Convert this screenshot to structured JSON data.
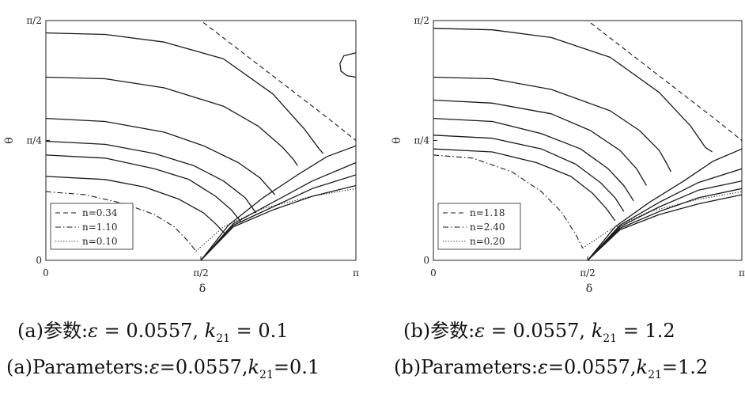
{
  "chart_data": [
    {
      "type": "line",
      "panel": "a",
      "title": "",
      "xlabel": "δ",
      "ylabel": "θ",
      "x_ticks": [
        "0",
        "π/2",
        "π"
      ],
      "y_ticks": [
        "0",
        "π/4",
        "π/2"
      ],
      "xlim": [
        0,
        3.1416
      ],
      "ylim": [
        0,
        1.5708
      ],
      "grid": false,
      "legend_position": "bottom-left",
      "series": [
        {
          "name": "n=0.34",
          "style": "dashed",
          "x": [
            0.0,
            1.571,
            2.88,
            3.1416
          ],
          "y": [
            1.5708,
            1.5708,
            0.92,
            0.785
          ]
        },
        {
          "name": "n=1.10",
          "style": "dashdot",
          "x": [
            0.0,
            0.4,
            0.8,
            1.1,
            1.3,
            1.45,
            1.52
          ],
          "y": [
            0.45,
            0.43,
            0.37,
            0.3,
            0.22,
            0.12,
            0.06
          ]
        },
        {
          "name": "n=0.10",
          "style": "dotted",
          "x": [
            1.52,
            1.8,
            2.2,
            2.7,
            3.1416
          ],
          "y": [
            0.06,
            0.22,
            0.34,
            0.42,
            0.47
          ]
        },
        {
          "name": "",
          "style": "solid",
          "x": [
            0.0,
            0.6,
            1.2,
            1.8,
            2.3,
            2.62,
            2.77,
            2.81
          ],
          "y": [
            1.49,
            1.48,
            1.43,
            1.32,
            1.09,
            0.86,
            0.73,
            0.7
          ]
        },
        {
          "name": "",
          "style": "solid",
          "x": [
            0.0,
            0.6,
            1.2,
            1.8,
            2.15,
            2.4,
            2.51,
            2.55
          ],
          "y": [
            1.2,
            1.19,
            1.13,
            1.01,
            0.88,
            0.74,
            0.66,
            0.62
          ]
        },
        {
          "name": "",
          "style": "solid",
          "x": [
            0.0,
            0.6,
            1.2,
            1.6,
            1.95,
            2.17,
            2.32
          ],
          "y": [
            0.93,
            0.91,
            0.84,
            0.75,
            0.64,
            0.54,
            0.43
          ]
        },
        {
          "name": "",
          "style": "solid",
          "x": [
            0.0,
            0.6,
            1.1,
            1.5,
            1.8,
            2.02,
            2.13
          ],
          "y": [
            0.78,
            0.76,
            0.7,
            0.62,
            0.52,
            0.41,
            0.31
          ]
        },
        {
          "name": "",
          "style": "solid",
          "x": [
            0.0,
            0.6,
            1.1,
            1.45,
            1.72,
            1.88,
            1.98
          ],
          "y": [
            0.69,
            0.67,
            0.6,
            0.53,
            0.42,
            0.33,
            0.25
          ]
        },
        {
          "name": "",
          "style": "solid",
          "x": [
            0.0,
            0.6,
            1.0,
            1.35,
            1.6,
            1.72,
            1.82
          ],
          "y": [
            0.55,
            0.53,
            0.48,
            0.4,
            0.31,
            0.24,
            0.17
          ]
        },
        {
          "name": "",
          "style": "solid",
          "x": [
            1.571,
            1.85,
            2.2,
            2.55,
            2.85,
            3.1416
          ],
          "y": [
            0.0,
            0.23,
            0.41,
            0.56,
            0.68,
            0.75
          ]
        },
        {
          "name": "",
          "style": "solid",
          "x": [
            1.571,
            1.9,
            2.3,
            2.7,
            3.1416
          ],
          "y": [
            0.0,
            0.24,
            0.38,
            0.52,
            0.64
          ]
        },
        {
          "name": "",
          "style": "solid",
          "x": [
            1.571,
            1.9,
            2.3,
            2.7,
            3.1416
          ],
          "y": [
            0.0,
            0.23,
            0.35,
            0.47,
            0.56
          ]
        },
        {
          "name": "",
          "style": "solid",
          "x": [
            1.571,
            1.9,
            2.3,
            2.7,
            3.1416
          ],
          "y": [
            0.0,
            0.22,
            0.33,
            0.42,
            0.49
          ]
        },
        {
          "name": "",
          "style": "solid",
          "x": [
            3.1416,
            3.02,
            2.98,
            2.99,
            3.05,
            3.1416
          ],
          "y": [
            1.36,
            1.34,
            1.29,
            1.24,
            1.21,
            1.2
          ]
        }
      ],
      "caption_cn": {
        "label": "(a)参数:",
        "eps_sym": "ε",
        "eps_eq": " = 0.0557, ",
        "k_sym": "k",
        "k_sub": "21",
        "k_eq": " = 0.1"
      },
      "caption_en": {
        "label": "(a)Parameters:",
        "eps_sym": "ε",
        "eps_eq": "=0.0557,",
        "k_sym": "k",
        "k_sub": "21",
        "k_eq": "=0.1"
      }
    },
    {
      "type": "line",
      "panel": "b",
      "title": "",
      "xlabel": "δ",
      "ylabel": "θ",
      "x_ticks": [
        "0",
        "π/2",
        "π"
      ],
      "y_ticks": [
        "0",
        "π/4",
        "π/2"
      ],
      "xlim": [
        0,
        3.1416
      ],
      "ylim": [
        0,
        1.5708
      ],
      "grid": false,
      "legend_position": "bottom-left",
      "series": [
        {
          "name": "n=1.18",
          "style": "dashed",
          "x": [
            0.0,
            1.571,
            2.88,
            3.1416
          ],
          "y": [
            1.5708,
            1.5708,
            0.92,
            0.785
          ]
        },
        {
          "name": "n=2.40",
          "style": "dashdot",
          "x": [
            0.0,
            0.4,
            0.8,
            1.1,
            1.3,
            1.45,
            1.52
          ],
          "y": [
            0.69,
            0.67,
            0.58,
            0.45,
            0.32,
            0.17,
            0.08
          ]
        },
        {
          "name": "n=0.20",
          "style": "dotted",
          "x": [
            1.52,
            1.8,
            2.2,
            2.7,
            3.1416
          ],
          "y": [
            0.08,
            0.2,
            0.32,
            0.4,
            0.45
          ]
        },
        {
          "name": "",
          "style": "solid",
          "x": [
            0.0,
            0.6,
            1.2,
            1.8,
            2.3,
            2.62,
            2.77,
            2.84
          ],
          "y": [
            1.52,
            1.51,
            1.46,
            1.33,
            1.1,
            0.88,
            0.74,
            0.71
          ]
        },
        {
          "name": "",
          "style": "solid",
          "x": [
            0.0,
            0.6,
            1.2,
            1.8,
            2.1,
            2.3,
            2.38,
            2.42
          ],
          "y": [
            1.2,
            1.19,
            1.12,
            0.98,
            0.85,
            0.72,
            0.63,
            0.58
          ]
        },
        {
          "name": "",
          "style": "solid",
          "x": [
            0.0,
            0.6,
            1.2,
            1.6,
            1.9,
            2.07,
            2.17
          ],
          "y": [
            1.05,
            1.03,
            0.96,
            0.85,
            0.72,
            0.6,
            0.49
          ]
        },
        {
          "name": "",
          "style": "solid",
          "x": [
            0.0,
            0.6,
            1.1,
            1.5,
            1.78,
            1.94,
            2.04
          ],
          "y": [
            0.93,
            0.91,
            0.83,
            0.73,
            0.6,
            0.49,
            0.39
          ]
        },
        {
          "name": "",
          "style": "solid",
          "x": [
            0.0,
            0.6,
            1.1,
            1.45,
            1.7,
            1.85,
            1.94
          ],
          "y": [
            0.82,
            0.8,
            0.73,
            0.63,
            0.51,
            0.41,
            0.32
          ]
        },
        {
          "name": "",
          "style": "solid",
          "x": [
            0.0,
            0.6,
            1.05,
            1.4,
            1.62,
            1.76,
            1.85
          ],
          "y": [
            0.73,
            0.71,
            0.64,
            0.55,
            0.44,
            0.34,
            0.26
          ]
        },
        {
          "name": "",
          "style": "solid",
          "x": [
            1.571,
            1.85,
            2.2,
            2.55,
            2.85,
            3.1416
          ],
          "y": [
            0.0,
            0.22,
            0.38,
            0.52,
            0.65,
            0.73
          ]
        },
        {
          "name": "",
          "style": "solid",
          "x": [
            1.571,
            1.9,
            2.3,
            2.7,
            3.1416
          ],
          "y": [
            0.0,
            0.23,
            0.38,
            0.51,
            0.6
          ]
        },
        {
          "name": "",
          "style": "solid",
          "x": [
            1.571,
            1.9,
            2.3,
            2.7,
            3.1416
          ],
          "y": [
            0.0,
            0.22,
            0.35,
            0.46,
            0.52
          ]
        },
        {
          "name": "",
          "style": "solid",
          "x": [
            1.571,
            1.9,
            2.3,
            2.7,
            3.1416
          ],
          "y": [
            0.0,
            0.21,
            0.32,
            0.41,
            0.47
          ]
        },
        {
          "name": "",
          "style": "solid",
          "x": [
            1.571,
            1.9,
            2.3,
            2.7,
            3.1416
          ],
          "y": [
            0.0,
            0.2,
            0.3,
            0.37,
            0.43
          ]
        }
      ],
      "caption_cn": {
        "label": "(b)参数:",
        "eps_sym": "ε",
        "eps_eq": " = 0.0557, ",
        "k_sym": "k",
        "k_sub": "21",
        "k_eq": " = 1.2"
      },
      "caption_en": {
        "label": "(b)Parameters:",
        "eps_sym": "ε",
        "eps_eq": "=0.0557,",
        "k_sym": "k",
        "k_sub": "21",
        "k_eq": "=1.2"
      }
    }
  ]
}
